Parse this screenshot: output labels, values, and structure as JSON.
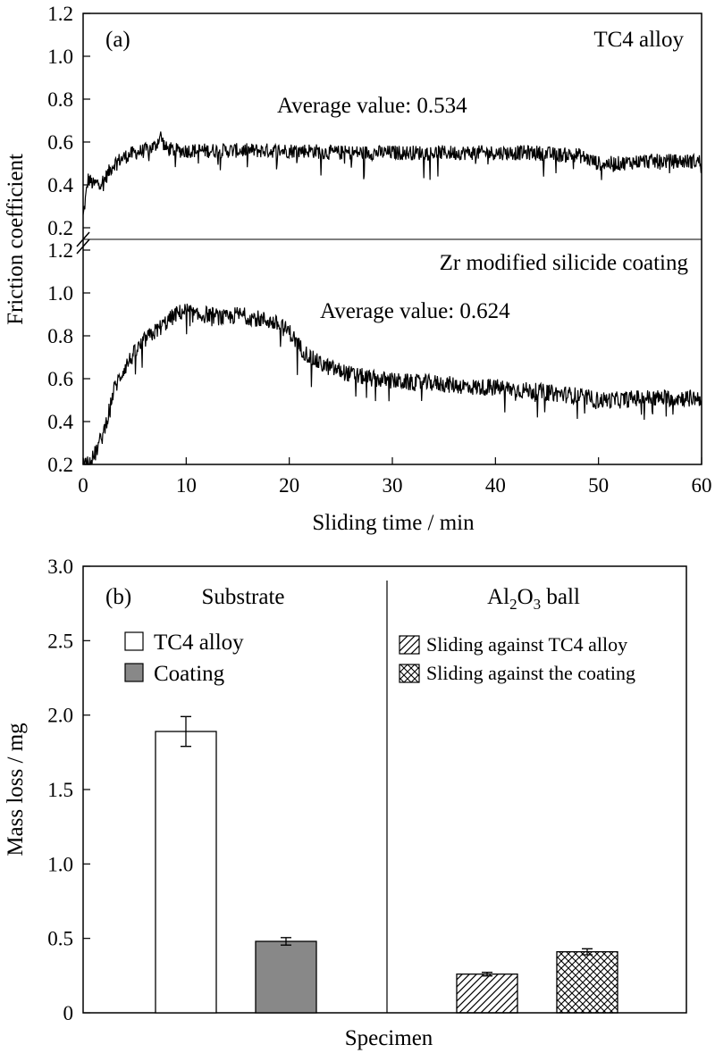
{
  "figure": {
    "panel_a": {
      "label": "(a)",
      "ylabel": "Friction coefficient",
      "xlabel": "Sliding time / min",
      "x_ticks": [
        "0",
        "10",
        "20",
        "30",
        "40",
        "50",
        "60"
      ],
      "y_ticks_upper": [
        "0.2",
        "0.4",
        "0.6",
        "0.8",
        "1.0",
        "1.2"
      ],
      "y_ticks_lower": [
        "0.2",
        "0.4",
        "0.6",
        "0.8",
        "1.0",
        "1.2"
      ],
      "upper_title": "TC4 alloy",
      "upper_avg": "Average value: 0.534",
      "lower_title": "Zr modified silicide coating",
      "lower_avg": "Average value: 0.624"
    },
    "panel_b": {
      "label": "(b)",
      "ylabel": "Mass loss / mg",
      "xlabel": "Specimen",
      "y_ticks": [
        "0",
        "0.5",
        "1.0",
        "1.5",
        "2.0",
        "2.5",
        "3.0"
      ],
      "substrate_header": "Substrate",
      "ball_header_parts": [
        "Al",
        "2",
        "O",
        "3",
        " ball"
      ],
      "legend_left": [
        "TC4 alloy",
        "Coating"
      ],
      "legend_right": [
        "Sliding against TC4 alloy",
        "Sliding against the coating"
      ]
    }
  },
  "chart_data": [
    {
      "type": "line",
      "title": "TC4 alloy",
      "xlabel": "Sliding time / min",
      "ylabel": "Friction coefficient",
      "xlim": [
        0,
        60
      ],
      "ylim": [
        0.2,
        1.2
      ],
      "average": 0.534,
      "series": [
        {
          "name": "TC4 alloy",
          "x": [
            0,
            0.5,
            1,
            1.5,
            2,
            3,
            4,
            5,
            6,
            7,
            7.5,
            8,
            9,
            10,
            12,
            14,
            16,
            18,
            20,
            22,
            24,
            26,
            28,
            30,
            32,
            34,
            36,
            38,
            40,
            42,
            44,
            46,
            48,
            50,
            52,
            54,
            56,
            58,
            60
          ],
          "y": [
            0.25,
            0.43,
            0.4,
            0.41,
            0.42,
            0.5,
            0.53,
            0.55,
            0.56,
            0.58,
            0.63,
            0.57,
            0.56,
            0.56,
            0.56,
            0.56,
            0.56,
            0.56,
            0.56,
            0.56,
            0.55,
            0.55,
            0.55,
            0.55,
            0.55,
            0.55,
            0.55,
            0.55,
            0.55,
            0.55,
            0.55,
            0.54,
            0.54,
            0.5,
            0.5,
            0.51,
            0.51,
            0.51,
            0.51
          ]
        }
      ]
    },
    {
      "type": "line",
      "title": "Zr modified silicide coating",
      "xlabel": "Sliding time / min",
      "ylabel": "Friction coefficient",
      "xlim": [
        0,
        60
      ],
      "ylim": [
        0.2,
        1.2
      ],
      "average": 0.624,
      "series": [
        {
          "name": "Zr modified silicide coating",
          "x": [
            0,
            1,
            2,
            3,
            4,
            5,
            6,
            7,
            8,
            9,
            10,
            11,
            12,
            13,
            14,
            15,
            16,
            17,
            18,
            19,
            20,
            21,
            22,
            23,
            24,
            26,
            28,
            30,
            32,
            34,
            36,
            38,
            40,
            42,
            44,
            46,
            48,
            50,
            52,
            54,
            56,
            58,
            60
          ],
          "y": [
            0.2,
            0.23,
            0.35,
            0.55,
            0.65,
            0.72,
            0.78,
            0.82,
            0.86,
            0.9,
            0.92,
            0.89,
            0.9,
            0.89,
            0.88,
            0.9,
            0.89,
            0.88,
            0.87,
            0.85,
            0.82,
            0.75,
            0.7,
            0.67,
            0.65,
            0.62,
            0.6,
            0.59,
            0.58,
            0.58,
            0.57,
            0.56,
            0.56,
            0.55,
            0.54,
            0.53,
            0.52,
            0.5,
            0.5,
            0.51,
            0.51,
            0.51,
            0.51
          ]
        }
      ]
    },
    {
      "type": "bar",
      "xlabel": "Specimen",
      "ylabel": "Mass loss / mg",
      "ylim": [
        0,
        3.0
      ],
      "groups": [
        "Substrate",
        "Al2O3 ball"
      ],
      "categories": [
        "TC4 alloy",
        "Coating",
        "Sliding against TC4 alloy",
        "Sliding against the coating"
      ],
      "values": [
        1.89,
        0.48,
        0.26,
        0.41
      ],
      "errors": [
        0.1,
        0.025,
        0.012,
        0.02
      ],
      "colors": [
        "#ffffff",
        "#888888",
        "hatch-diagonal",
        "hatch-cross"
      ]
    }
  ]
}
